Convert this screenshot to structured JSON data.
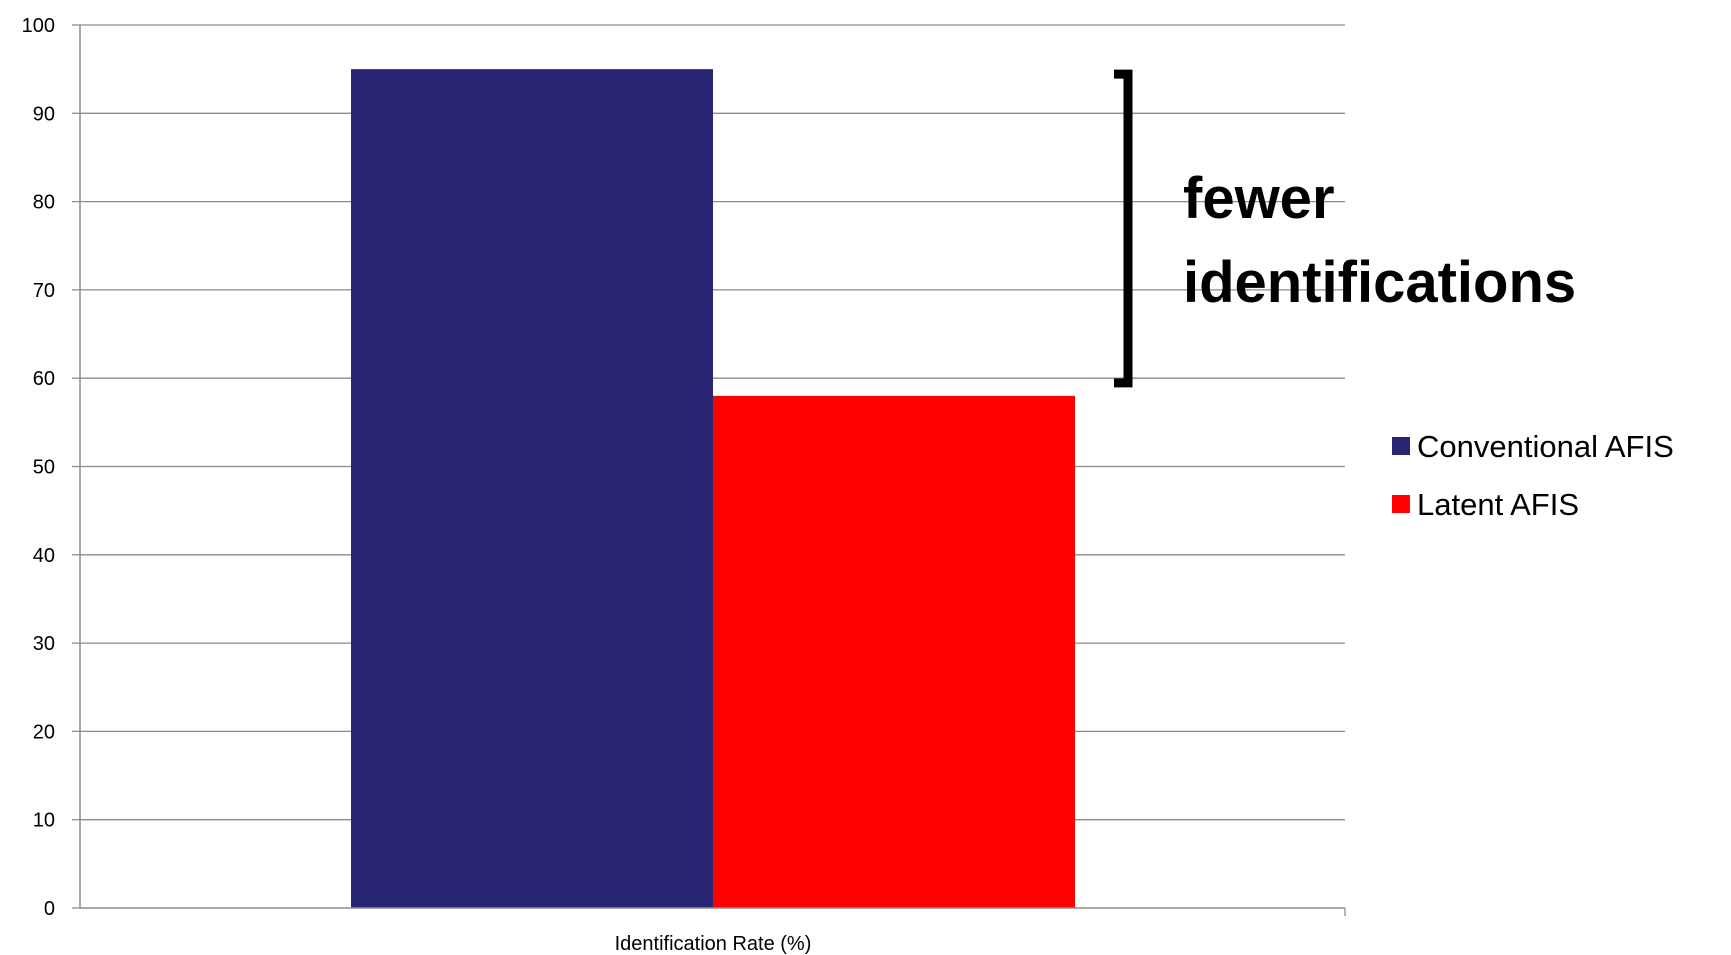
{
  "chart_data": {
    "type": "bar",
    "categories": [
      "Identification Rate (%)"
    ],
    "series": [
      {
        "name": "Conventional AFIS",
        "values": [
          95
        ],
        "color": "#282572"
      },
      {
        "name": "Latent AFIS",
        "values": [
          58
        ],
        "color": "#ff0000"
      }
    ],
    "xlabel": "Identification Rate (%)",
    "ylabel": "",
    "ylim": [
      0,
      100
    ],
    "yticks": [
      0,
      10,
      20,
      30,
      40,
      50,
      60,
      70,
      80,
      90,
      100
    ],
    "grid": true,
    "legend": "right",
    "annotation": {
      "lines": [
        "fewer",
        "identifications"
      ],
      "from_value": 95,
      "to_value": 58
    }
  }
}
